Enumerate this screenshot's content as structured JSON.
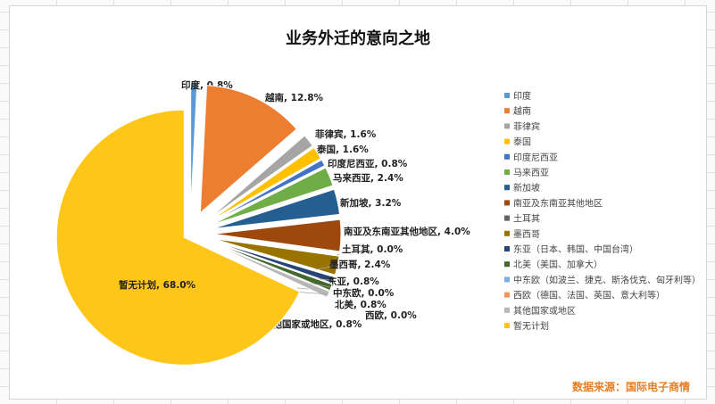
{
  "chart_data": {
    "type": "pie",
    "title": "业务外迁的意向之地",
    "source": "数据来源：国际电子商情",
    "legend_position": "right",
    "slices": [
      {
        "label": "印度",
        "value": 0.8,
        "color": "#5b9bd5"
      },
      {
        "label": "越南",
        "value": 12.8,
        "color": "#ed7d31"
      },
      {
        "label": "菲律宾",
        "value": 1.6,
        "color": "#a5a5a5"
      },
      {
        "label": "泰国",
        "value": 1.6,
        "color": "#ffc000"
      },
      {
        "label": "印度尼西亚",
        "value": 0.8,
        "color": "#4472c4"
      },
      {
        "label": "马来西亚",
        "value": 2.4,
        "color": "#70ad47"
      },
      {
        "label": "新加坡",
        "value": 3.2,
        "color": "#255e91"
      },
      {
        "label": "南亚及东南亚其他地区",
        "value": 4.0,
        "color": "#9e480e"
      },
      {
        "label": "土耳其",
        "value": 0.0,
        "color": "#636363"
      },
      {
        "label": "墨西哥",
        "value": 2.4,
        "color": "#997300"
      },
      {
        "label": "东亚（日本、韩国、中国台湾）",
        "value": 0.8,
        "color": "#264478"
      },
      {
        "label": "北美（美国、加拿大）",
        "value": 0.8,
        "color": "#43682b"
      },
      {
        "label": "中东欧（如波兰、捷克、斯洛伐克、匈牙利等）",
        "value": 0.0,
        "color": "#7cafdd"
      },
      {
        "label": "西欧（德国、法国、英国、意大利等）",
        "value": 0.0,
        "color": "#f1975a"
      },
      {
        "label": "其他国家或地区",
        "value": 0.8,
        "color": "#b7b7b7"
      },
      {
        "label": "暂无计划",
        "value": 68.0,
        "color": "#ffc61a"
      }
    ],
    "data_labels": [
      "印度, 0.8%",
      "越南, 12.8%",
      "菲律宾, 1.6%",
      "泰国, 1.6%",
      "印度尼西亚, 0.8%",
      "马来西亚, 2.4%",
      "新加坡, 3.2%",
      "南亚及东南亚其他地区, 4.0%",
      "土耳其, 0.0%",
      "墨西哥, 2.4%",
      "东亚, 0.8%",
      "中东欧, 0.0%",
      "北美, 0.8%",
      "西欧, 0.0%",
      "其他国家或地区, 0.8%",
      "暂无计划, 68.0%"
    ]
  }
}
